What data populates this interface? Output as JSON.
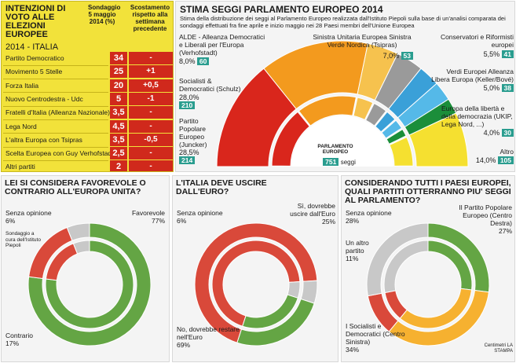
{
  "votes": {
    "title": "INTENZIONI DI VOTO ALLE ELEZIONI EUROPEE",
    "subtitle": "2014 - ITALIA",
    "col1_header": "Sondaggio 5 maggio 2014 (%)",
    "col2_header": "Scostamento rispetto alla settimana precedente",
    "colors": {
      "panel": "#f2e23a",
      "value": "#d0291c"
    }
  },
  "seats": {
    "title": "STIMA SEGGI PARLAMENTO EUROPEO 2014",
    "description": "Stima della distribuzione dei seggi al Parlamento Europeo realizzata dall'Istituto Piepoli sulla base di un'analisi comparata dei sondaggi effettuati fra fine aprile e inizio maggio nei 28 Paesi membri dell'Unione Europea",
    "center_title": "PARLAMENTO EUROPEO",
    "center_total": "751",
    "center_unit": "seggi",
    "labels": {
      "alde": "ALDE - Alleanza Democratici e Liberali per l'Europa (Verhofstadt)",
      "sd": "Socialisti & Democratici (Schulz)",
      "ppe": "Partito Popolare Europeo (Juncker)",
      "gue": "Sinistra Unitaria Europea Sinistra Verde Nordica (Tsipras)",
      "ecr": "Conservatori e Riformisti europei",
      "verdi": "Verdi Europei Alleanza Libera Europa (Keller/Bové)",
      "efd": "Europa della libertà e della democrazia (UKIP, Lega Nord, ...)",
      "altro": "Altro"
    },
    "pct_text": {
      "alde": "8,0%",
      "sd": "28,0%",
      "ppe": "28,5%",
      "gue": "7,0%",
      "ecr": "5,5%",
      "verdi": "5,0%",
      "efd": "4,0%",
      "altro": "14,0%"
    },
    "seat_text": {
      "alde": "60",
      "sd": "210",
      "ppe": "214",
      "gue": "53",
      "ecr": "41",
      "verdi": "38",
      "efd": "30",
      "altro": "105"
    }
  },
  "q1": {
    "title": "LEI SI CONSIDERA FAVOREVOLE O CONTRARIO ALL'EUROPA UNITA?",
    "l_fav": "Favorevole",
    "p_fav": "77%",
    "l_senza": "Senza opinione",
    "p_senza": "6%",
    "l_contro": "Contrario",
    "p_contro": "17%",
    "note": "Sondaggio a cura dell'Istituto Piepoli"
  },
  "q2": {
    "title": "L'ITALIA DEVE USCIRE DALL'EURO?",
    "l_senza": "Senza opinione",
    "p_senza": "6%",
    "l_si": "Sì, dovrebbe uscire dall'Euro",
    "p_si": "25%",
    "l_no": "No, dovrebbe restare nell'Euro",
    "p_no": "69%"
  },
  "q3": {
    "title": "CONSIDERANDO TUTTI I PAESI EUROPEI, QUALI PARTITI OTTERRANNO PIU' SEGGI AL PARLAMENTO?",
    "l_senza": "Senza opinione",
    "p_senza": "28%",
    "l_altro": "Un altro partito",
    "p_altro": "11%",
    "l_ppe": "Il Partito Popolare Europeo (Centro Destra)",
    "p_ppe": "27%",
    "l_sd": "I Socialisti e Democratici (Centro Sinistra)",
    "p_sd": "34%",
    "credit": "Centimetri LA STAMPA"
  },
  "chart_data": [
    {
      "type": "table",
      "title": "INTENZIONI DI VOTO ALLE ELEZIONI EUROPEE",
      "subtitle": "2014 - ITALIA",
      "columns": [
        "Sondaggio 5 maggio 2014 (%)",
        "Scostamento rispetto alla settimana precedente"
      ],
      "rows": [
        {
          "party": "Partito Democratico",
          "value": 34,
          "value_text": "34",
          "delta": "-"
        },
        {
          "party": "Movimento 5 Stelle",
          "value": 25,
          "value_text": "25",
          "delta": "+1"
        },
        {
          "party": "Forza Italia",
          "value": 20,
          "value_text": "20",
          "delta": "+0,5"
        },
        {
          "party": "Nuovo Centrodestra - Udc",
          "value": 5,
          "value_text": "5",
          "delta": "-1"
        },
        {
          "party": "Fratelli d'Italia (Alleanza Nazionale)",
          "value": 3.5,
          "value_text": "3,5",
          "delta": "-"
        },
        {
          "party": "Lega Nord",
          "value": 4.5,
          "value_text": "4,5",
          "delta": "-"
        },
        {
          "party": "L'altra Europa con Tsipras",
          "value": 3.5,
          "value_text": "3,5",
          "delta": "-0,5"
        },
        {
          "party": "Scelta Europea con Guy Verhofstadt",
          "value": 2.5,
          "value_text": "2,5",
          "delta": "-"
        },
        {
          "party": "Altri partiti",
          "value": 2,
          "value_text": "2",
          "delta": "-"
        }
      ]
    },
    {
      "type": "pie",
      "title": "STIMA SEGGI PARLAMENTO EUROPEO 2014",
      "total": 751,
      "order": [
        "gue",
        "alde",
        "sd",
        "ppe",
        "efd",
        "verdi",
        "ecr",
        "altro"
      ],
      "slices": [
        {
          "key": "sd",
          "percent": 28.0,
          "seats": 210,
          "color": "#f39a1e"
        },
        {
          "key": "ppe",
          "percent": 28.5,
          "seats": 214,
          "color": "#d9261c"
        },
        {
          "key": "gue",
          "percent": 7.0,
          "seats": 53,
          "color": "#9a9a9a"
        },
        {
          "key": "alde",
          "percent": 8.0,
          "seats": 60,
          "color": "#f6c24e"
        },
        {
          "key": "ecr",
          "percent": 5.5,
          "seats": 41,
          "color": "#3aa0d8"
        },
        {
          "key": "verdi",
          "percent": 5.0,
          "seats": 38,
          "color": "#55b9e8"
        },
        {
          "key": "efd",
          "percent": 4.0,
          "seats": 30,
          "color": "#1b8e3a"
        },
        {
          "key": "altro",
          "percent": 14.0,
          "seats": 105,
          "color": "#f5e030"
        }
      ]
    },
    {
      "type": "pie",
      "title": "LEI SI CONSIDERA FAVOREVOLE O CONTRARIO ALL'EUROPA UNITA?",
      "slices": [
        {
          "label": "Favorevole",
          "value": 77,
          "color": "#64a544"
        },
        {
          "label": "Contrario",
          "value": 17,
          "color": "#d9493a"
        },
        {
          "label": "Senza opinione",
          "value": 6,
          "color": "#c8c8c8"
        }
      ]
    },
    {
      "type": "pie",
      "title": "L'ITALIA DEVE USCIRE DALL'EURO?",
      "slices": [
        {
          "label": "No, dovrebbe restare nell'Euro",
          "value": 69,
          "color": "#d9493a"
        },
        {
          "label": "Senza opinione",
          "value": 6,
          "color": "#c8c8c8"
        },
        {
          "label": "Sì, dovrebbe uscire dall'Euro",
          "value": 25,
          "color": "#64a544"
        }
      ]
    },
    {
      "type": "pie",
      "title": "CONSIDERANDO TUTTI I PAESI EUROPEI, QUALI PARTITI OTTERRANNO PIU' SEGGI AL PARLAMENTO?",
      "slices": [
        {
          "label": "Il Partito Popolare Europeo (Centro Destra)",
          "value": 27,
          "color": "#64a544"
        },
        {
          "label": "I Socialisti e Democratici (Centro Sinistra)",
          "value": 34,
          "color": "#f6b130"
        },
        {
          "label": "Un altro partito",
          "value": 11,
          "color": "#d9493a"
        },
        {
          "label": "Senza opinione",
          "value": 28,
          "color": "#c8c8c8"
        }
      ]
    }
  ]
}
